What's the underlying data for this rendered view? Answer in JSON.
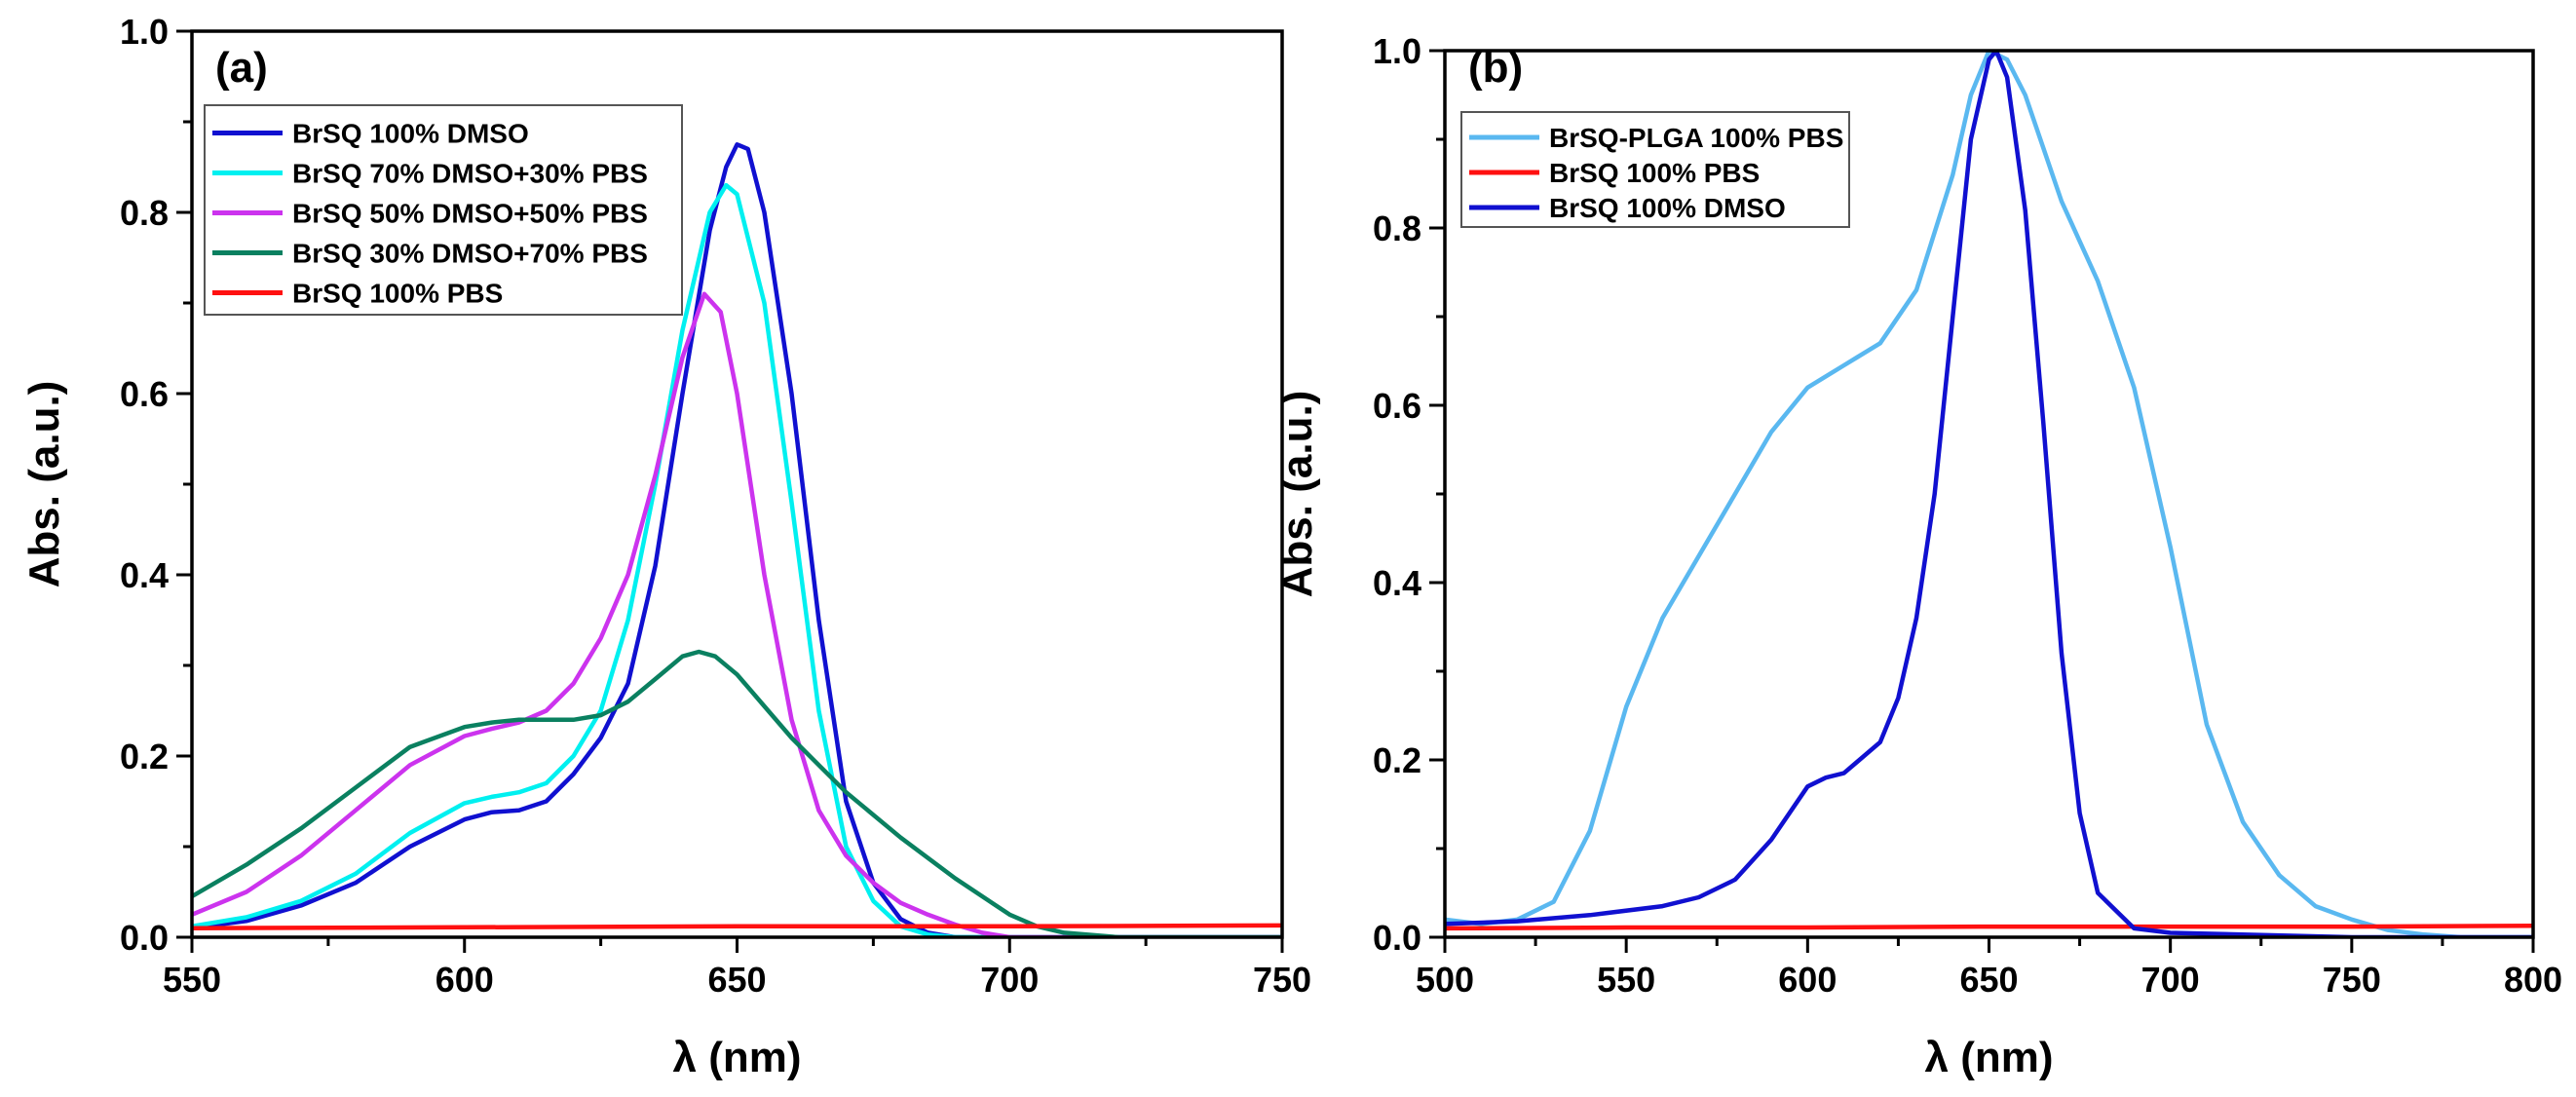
{
  "chart_data": [
    {
      "type": "line",
      "panel_label": "(a)",
      "xlabel": "λ (nm)",
      "ylabel": "Abs. (a.u.)",
      "xlim": [
        550,
        750
      ],
      "ylim": [
        0,
        1.0
      ],
      "xticks": [
        550,
        600,
        650,
        700,
        750
      ],
      "xtick_labels": [
        "550",
        "600",
        "650",
        "700",
        "750"
      ],
      "yticks": [
        0,
        0.2,
        0.4,
        0.6,
        0.8,
        1.0
      ],
      "ytick_labels": [
        "0.0",
        "0.2",
        "0.4",
        "0.6",
        "0.8",
        "1.0"
      ],
      "legend_position": "top-left",
      "series": [
        {
          "name": "BrSQ 100% DMSO",
          "color": "#1010d0",
          "x": [
            550,
            560,
            570,
            580,
            590,
            600,
            605,
            610,
            615,
            620,
            625,
            630,
            635,
            640,
            645,
            648,
            650,
            652,
            655,
            660,
            665,
            670,
            675,
            680,
            685,
            690,
            700,
            750
          ],
          "y": [
            0.01,
            0.018,
            0.035,
            0.06,
            0.1,
            0.13,
            0.138,
            0.14,
            0.15,
            0.18,
            0.22,
            0.28,
            0.41,
            0.6,
            0.78,
            0.85,
            0.875,
            0.87,
            0.8,
            0.6,
            0.35,
            0.15,
            0.06,
            0.02,
            0.005,
            0,
            0,
            0
          ]
        },
        {
          "name": "BrSQ 70% DMSO+30% PBS",
          "color": "#00f0f0",
          "x": [
            550,
            560,
            570,
            580,
            590,
            600,
            605,
            610,
            615,
            620,
            625,
            630,
            635,
            640,
            645,
            648,
            650,
            655,
            660,
            665,
            670,
            675,
            680,
            685,
            690,
            750
          ],
          "y": [
            0.012,
            0.022,
            0.04,
            0.07,
            0.115,
            0.148,
            0.155,
            0.16,
            0.17,
            0.2,
            0.25,
            0.35,
            0.5,
            0.67,
            0.8,
            0.83,
            0.82,
            0.7,
            0.48,
            0.25,
            0.1,
            0.04,
            0.012,
            0.003,
            0,
            0
          ]
        },
        {
          "name": "BrSQ 50% DMSO+50% PBS",
          "color": "#cc33ee",
          "x": [
            550,
            560,
            570,
            580,
            590,
            600,
            605,
            610,
            615,
            620,
            625,
            630,
            635,
            640,
            644,
            647,
            650,
            655,
            660,
            665,
            670,
            675,
            680,
            685,
            690,
            695,
            700,
            750
          ],
          "y": [
            0.025,
            0.05,
            0.09,
            0.14,
            0.19,
            0.222,
            0.23,
            0.237,
            0.25,
            0.28,
            0.33,
            0.4,
            0.51,
            0.64,
            0.71,
            0.69,
            0.6,
            0.4,
            0.24,
            0.14,
            0.09,
            0.06,
            0.038,
            0.025,
            0.014,
            0.005,
            0,
            0
          ]
        },
        {
          "name": "BrSQ 30% DMSO+70% PBS",
          "color": "#0a8060",
          "x": [
            550,
            560,
            570,
            580,
            590,
            600,
            605,
            610,
            615,
            620,
            625,
            630,
            635,
            640,
            643,
            646,
            650,
            655,
            660,
            665,
            670,
            680,
            690,
            700,
            705,
            710,
            720,
            730,
            750
          ],
          "y": [
            0.045,
            0.08,
            0.12,
            0.165,
            0.21,
            0.232,
            0.237,
            0.24,
            0.24,
            0.24,
            0.245,
            0.26,
            0.285,
            0.31,
            0.315,
            0.31,
            0.29,
            0.255,
            0.22,
            0.19,
            0.16,
            0.11,
            0.065,
            0.025,
            0.012,
            0.005,
            0,
            0,
            0
          ]
        },
        {
          "name": "BrSQ 100% PBS",
          "color": "#ff1010",
          "x": [
            550,
            600,
            650,
            700,
            750
          ],
          "y": [
            0.01,
            0.011,
            0.012,
            0.012,
            0.013
          ]
        }
      ]
    },
    {
      "type": "line",
      "panel_label": "(b)",
      "xlabel": "λ (nm)",
      "ylabel": "Abs. (a.u.)",
      "xlim": [
        500,
        800
      ],
      "ylim": [
        0,
        1.0
      ],
      "xticks": [
        500,
        550,
        600,
        650,
        700,
        750,
        800
      ],
      "xtick_labels": [
        "500",
        "550",
        "600",
        "650",
        "700",
        "750",
        "800"
      ],
      "yticks": [
        0,
        0.2,
        0.4,
        0.6,
        0.8,
        1.0
      ],
      "ytick_labels": [
        "0.0",
        "0.2",
        "0.4",
        "0.6",
        "0.8",
        "1.0"
      ],
      "legend_position": "top-left",
      "series": [
        {
          "name": "BrSQ-PLGA 100% PBS",
          "color": "#5ab8f0",
          "x": [
            500,
            510,
            520,
            530,
            540,
            550,
            560,
            570,
            580,
            590,
            600,
            610,
            620,
            630,
            640,
            645,
            650,
            655,
            660,
            670,
            680,
            690,
            700,
            710,
            720,
            730,
            740,
            750,
            760,
            770,
            780,
            800
          ],
          "y": [
            0.02,
            0.015,
            0.02,
            0.04,
            0.12,
            0.26,
            0.36,
            0.43,
            0.5,
            0.57,
            0.62,
            0.645,
            0.67,
            0.73,
            0.86,
            0.95,
            1.0,
            0.99,
            0.95,
            0.83,
            0.74,
            0.62,
            0.44,
            0.24,
            0.13,
            0.07,
            0.035,
            0.02,
            0.008,
            0.003,
            0,
            0
          ]
        },
        {
          "name": "BrSQ 100% PBS",
          "color": "#ff1010",
          "x": [
            500,
            550,
            600,
            650,
            700,
            750,
            800
          ],
          "y": [
            0.01,
            0.011,
            0.011,
            0.012,
            0.012,
            0.012,
            0.013
          ]
        },
        {
          "name": "BrSQ 100% DMSO",
          "color": "#1010d0",
          "x": [
            500,
            520,
            540,
            560,
            570,
            580,
            590,
            600,
            605,
            610,
            620,
            625,
            630,
            635,
            640,
            645,
            650,
            652,
            655,
            660,
            665,
            670,
            675,
            680,
            690,
            700,
            750,
            800
          ],
          "y": [
            0.015,
            0.018,
            0.025,
            0.035,
            0.045,
            0.065,
            0.11,
            0.17,
            0.18,
            0.185,
            0.22,
            0.27,
            0.36,
            0.5,
            0.7,
            0.9,
            0.99,
            1.0,
            0.97,
            0.82,
            0.58,
            0.32,
            0.14,
            0.05,
            0.01,
            0.005,
            0,
            0
          ]
        }
      ]
    }
  ]
}
